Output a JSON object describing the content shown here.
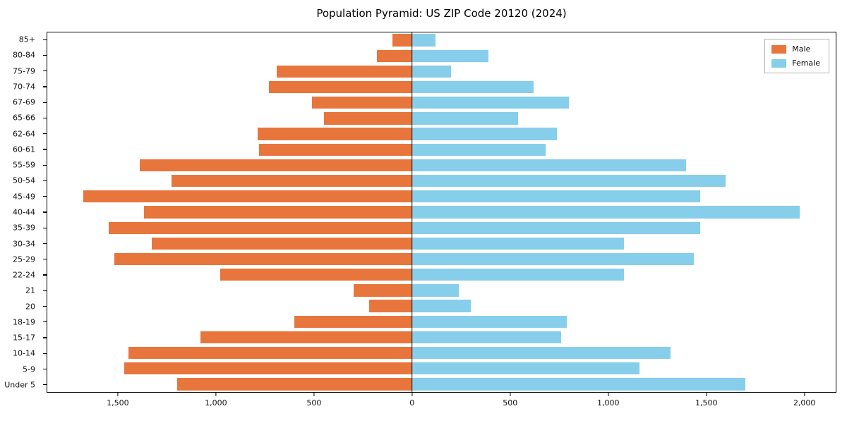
{
  "chart_data": {
    "type": "bar",
    "variant": "population-pyramid",
    "title": "Population Pyramid: US ZIP Code 20120 (2024)",
    "orientation": "horizontal",
    "grid": false,
    "zero_line": true,
    "legend_position": "upper right",
    "xlim": [
      -1863,
      2163
    ],
    "categories": [
      "85+",
      "80-84",
      "75-79",
      "70-74",
      "67-69",
      "65-66",
      "62-64",
      "60-61",
      "55-59",
      "50-54",
      "45-49",
      "40-44",
      "35-39",
      "30-34",
      "25-29",
      "22-24",
      "21",
      "20",
      "18-19",
      "15-17",
      "10-14",
      "5-9",
      "Under 5"
    ],
    "series": [
      {
        "name": "Male",
        "direction": "left",
        "color": "#e8763c",
        "values": [
          100,
          180,
          690,
          730,
          510,
          450,
          790,
          780,
          1390,
          1230,
          1680,
          1370,
          1550,
          1330,
          1520,
          980,
          300,
          220,
          600,
          1080,
          1450,
          1470,
          1200
        ]
      },
      {
        "name": "Female",
        "direction": "right",
        "color": "#87ceeb",
        "values": [
          120,
          390,
          200,
          620,
          800,
          540,
          740,
          680,
          1400,
          1600,
          1470,
          1980,
          1470,
          1080,
          1440,
          1080,
          240,
          300,
          790,
          760,
          1320,
          1160,
          1700
        ]
      }
    ],
    "x_ticks": [
      {
        "value": -1500,
        "label": "1,500"
      },
      {
        "value": -1000,
        "label": "1,000"
      },
      {
        "value": -500,
        "label": "500"
      },
      {
        "value": 0,
        "label": "0"
      },
      {
        "value": 500,
        "label": "500"
      },
      {
        "value": 1000,
        "label": "1,000"
      },
      {
        "value": 1500,
        "label": "1,500"
      },
      {
        "value": 2000,
        "label": "2,000"
      }
    ]
  }
}
